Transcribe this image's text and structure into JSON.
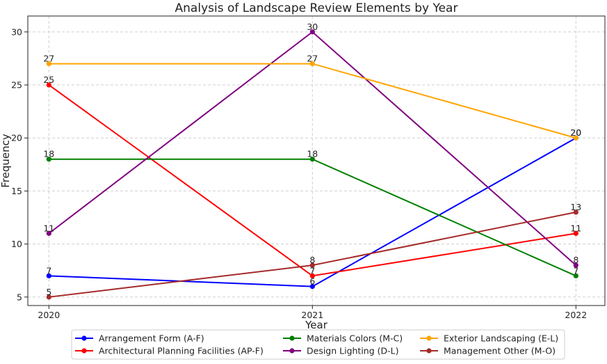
{
  "chart_data": {
    "type": "line",
    "title": "Analysis of Landscape Review Elements by Year",
    "xlabel": "Year",
    "ylabel": "Frequency",
    "x": [
      "2020",
      "2021",
      "2022"
    ],
    "xlim": [
      2019.92,
      2022.11
    ],
    "ylim": [
      4.2,
      31.5
    ],
    "yticks": [
      5,
      10,
      15,
      20,
      25,
      30
    ],
    "grid": true,
    "legend_position": "bottom-center",
    "series": [
      {
        "name": "Arrangement Form (A-F)",
        "color": "#0000ff",
        "values": [
          7,
          6,
          20
        ]
      },
      {
        "name": "Architectural Planning Facilities (AP-F)",
        "color": "#ff0000",
        "values": [
          25,
          7,
          11
        ]
      },
      {
        "name": "Materials Colors (M-C)",
        "color": "#008000",
        "values": [
          18,
          18,
          7
        ]
      },
      {
        "name": "Design Lighting (D-L)",
        "color": "#800080",
        "values": [
          11,
          30,
          8
        ]
      },
      {
        "name": "Exterior Landscaping (E-L)",
        "color": "#ffa500",
        "values": [
          27,
          27,
          20
        ]
      },
      {
        "name": "Management Other (M-O)",
        "color": "#a52a2a",
        "values": [
          5,
          8,
          13
        ]
      }
    ]
  }
}
